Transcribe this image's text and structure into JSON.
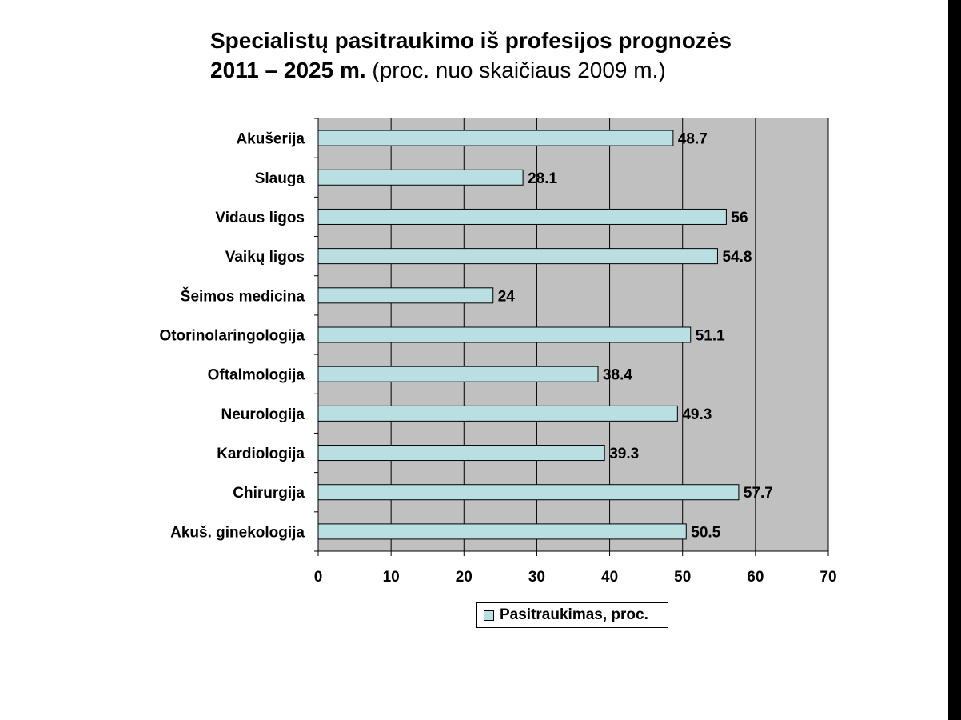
{
  "title": {
    "line1": "Specialistų pasitraukimo iš profesijos prognozės",
    "line2_bold": "2011 – 2025 m.",
    "line2_normal": "(proc. nuo skaičiaus 2009 m.)"
  },
  "colors": {
    "bar_fill": "#b9dfe2",
    "plot_background": "#c0c0c0",
    "gridline": "#000000"
  },
  "chart_data": {
    "type": "bar",
    "orientation": "horizontal",
    "title": "Specialistų pasitraukimo iš profesijos prognozės 2011 – 2025 m. (proc. nuo skaičiaus 2009 m.)",
    "categories": [
      "Akušerija",
      "Slauga",
      "Vidaus ligos",
      "Vaikų ligos",
      "Šeimos medicina",
      "Otorinolaringologija",
      "Oftalmologija",
      "Neurologija",
      "Kardiologija",
      "Chirurgija",
      "Akuš. ginekologija"
    ],
    "series": [
      {
        "name": "Pasitraukimas, proc.",
        "values": [
          48.7,
          28.1,
          56,
          54.8,
          24,
          51.1,
          38.4,
          49.3,
          39.3,
          57.7,
          50.5
        ]
      }
    ],
    "data_labels": [
      "48.7",
      "28.1",
      "56",
      "54.8",
      "24",
      "51.1",
      "38.4",
      "49.3",
      "39.3",
      "57.7",
      "50.5"
    ],
    "xlim": [
      0,
      70
    ],
    "x_ticks": [
      "0",
      "10",
      "20",
      "30",
      "40",
      "50",
      "60",
      "70"
    ],
    "xlabel": "",
    "ylabel": "",
    "grid": true,
    "legend_position": "bottom"
  }
}
